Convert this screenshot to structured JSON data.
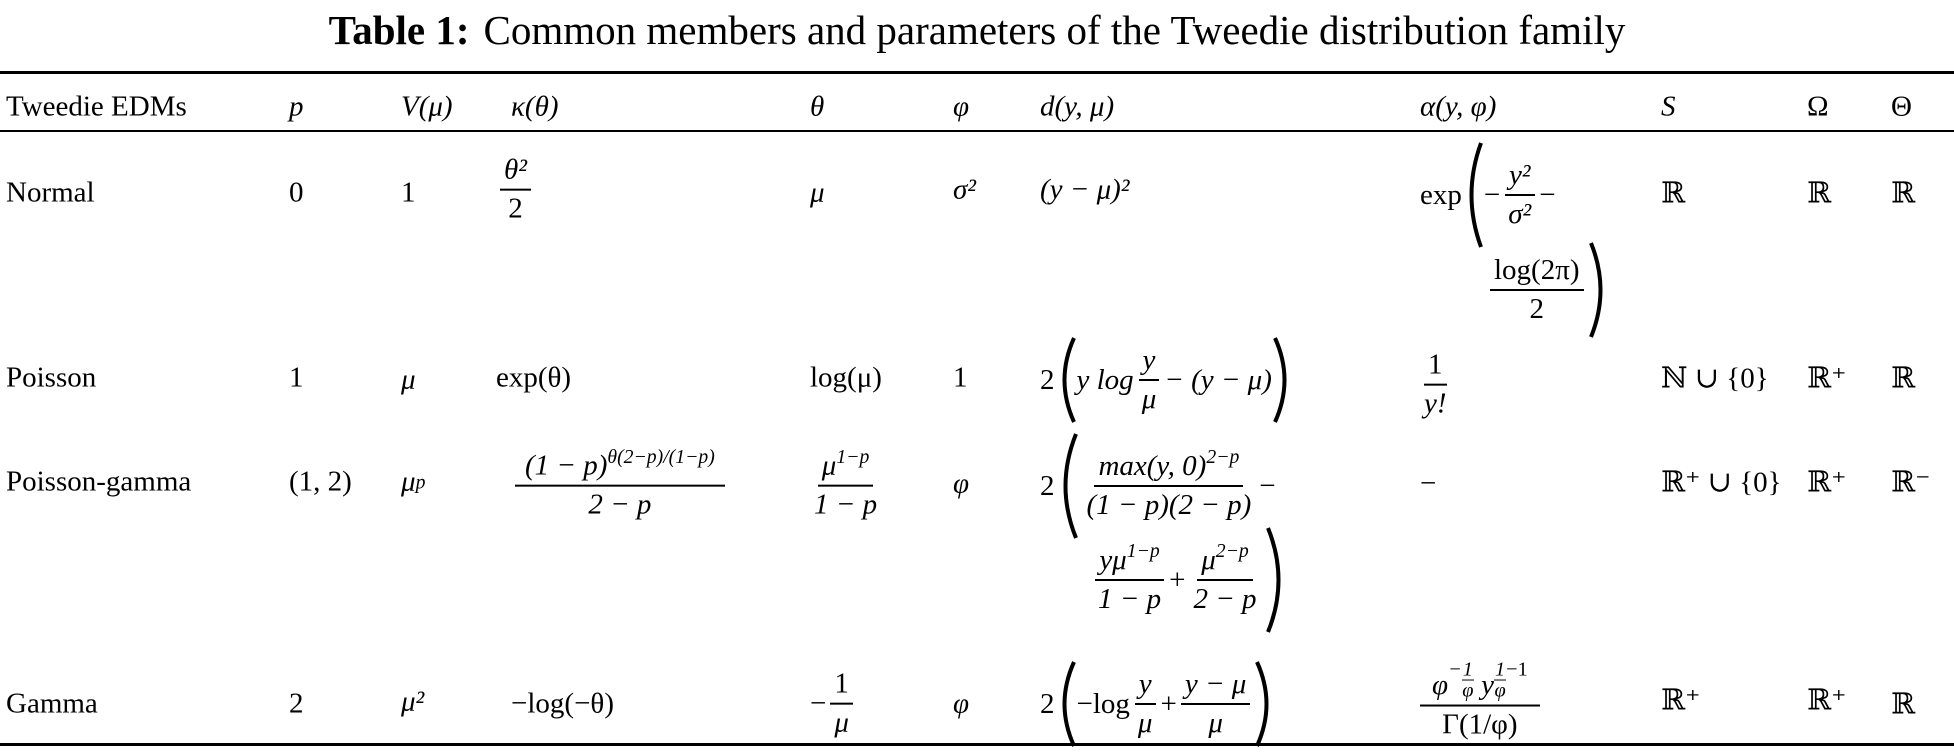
{
  "title": {
    "label": "Table 1:",
    "text": "Common members and parameters of the Tweedie distribution family"
  },
  "headers": {
    "edm": "Tweedie EDMs",
    "p": "p",
    "V": "V(μ)",
    "kappa": "κ(θ)",
    "theta": "θ",
    "phi": "φ",
    "d": "d(y, μ)",
    "alpha": "α(y, φ)",
    "S": "S",
    "Omega": "Ω",
    "Theta": "Θ"
  },
  "rows": [
    {
      "name": "Normal",
      "p": "0",
      "V": "1",
      "kappa": {
        "num": "θ²",
        "den": "2"
      },
      "theta": "μ",
      "phi": "σ²",
      "d": "(y − μ)²",
      "alpha": {
        "prefix": "exp",
        "minus": "−",
        "num": "y²",
        "den": "σ²",
        "trail": "−",
        "num2": "log(2π)",
        "den2": "2"
      },
      "S": "ℝ",
      "Omega": "ℝ",
      "Theta": "ℝ"
    },
    {
      "name": "Poisson",
      "p": "1",
      "V": "μ",
      "kappa": "exp(θ)",
      "theta": "log(μ)",
      "phi": "1",
      "d": {
        "coef": "2",
        "a": "y log",
        "num": "y",
        "den": "μ",
        "b": "− (y − μ)"
      },
      "alpha": {
        "num": "1",
        "den": "y!"
      },
      "S": "ℕ ∪ {0}",
      "Omega": "ℝ⁺",
      "Theta": "ℝ"
    },
    {
      "name": "Poisson-gamma",
      "p": "(1, 2)",
      "V": {
        "base": "μ",
        "sup": "p"
      },
      "kappa": {
        "num_base": "(1 − p)",
        "num_sup": "θ(2−p)/(1−p)",
        "den": "2 − p"
      },
      "theta": {
        "num_base": "μ",
        "num_sup": "1−p",
        "den": "1 − p"
      },
      "phi": "φ",
      "d": {
        "coef": "2",
        "num1_base": "max(y, 0)",
        "num1_sup": "2−p",
        "den1": "(1 − p)(2 − p)",
        "op1": "−",
        "num2_base": "yμ",
        "num2_sup": "1−p",
        "den2": "1 − p",
        "op2": "+",
        "num3_base": "μ",
        "num3_sup": "2−p",
        "den3": "2 − p"
      },
      "alpha": "−",
      "S": "ℝ⁺ ∪ {0}",
      "Omega": "ℝ⁺",
      "Theta": "ℝ⁻"
    },
    {
      "name": "Gamma",
      "p": "2",
      "V": "μ²",
      "kappa": "−log(−θ)",
      "theta": {
        "minus": "−",
        "num": "1",
        "den": "μ"
      },
      "phi": "φ",
      "d": {
        "coef": "2",
        "a": "−log",
        "num1": "y",
        "den1": "μ",
        "op": "+",
        "num2": "y − μ",
        "den2": "μ"
      },
      "alpha": {
        "num_a": "φ",
        "num_a_sup_minus": "−",
        "num_a_sup_num": "1",
        "num_a_sup_den": "φ",
        "num_b": "y",
        "num_b_sup_num": "1",
        "num_b_sup_den": "φ",
        "num_b_sup_tail": "−1",
        "den": "Γ(1/φ)"
      },
      "S": "ℝ⁺",
      "Omega": "ℝ⁺",
      "Theta": "ℝ"
    }
  ]
}
